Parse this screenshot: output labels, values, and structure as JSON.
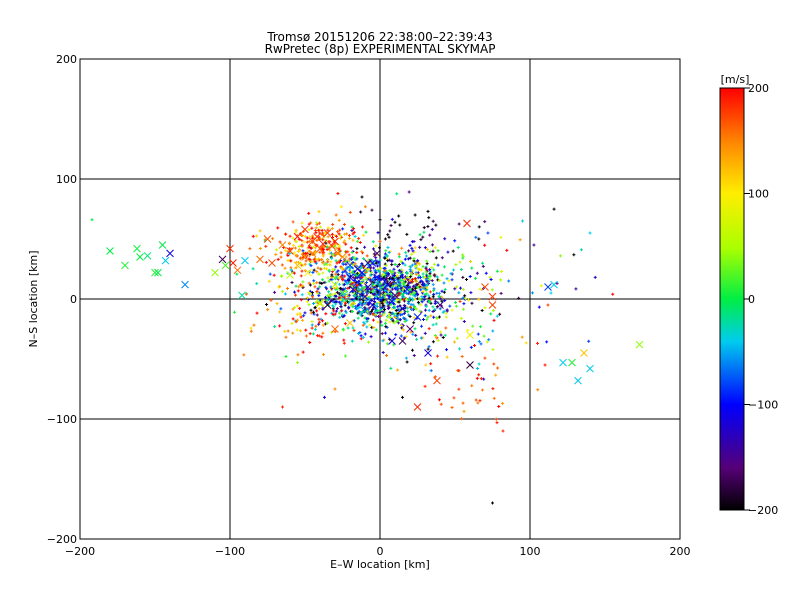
{
  "chart_data": {
    "type": "scatter",
    "title": "Tromsø 20151206 22:38:00–22:39:43",
    "subtitle": "RwPretec (8p) EXPERIMENTAL SKYMAP",
    "xlabel": "E–W location [km]",
    "ylabel": "N–S location [km]",
    "xlim": [
      -200,
      200
    ],
    "ylim": [
      -200,
      200
    ],
    "xticks": [
      -200,
      -100,
      0,
      100,
      200
    ],
    "yticks": [
      -200,
      -100,
      0,
      100,
      200
    ],
    "xtick_labels": [
      "−200",
      "−100",
      "0",
      "100",
      "200"
    ],
    "ytick_labels": [
      "−200",
      "−100",
      "0",
      "100",
      "200"
    ],
    "grid": true,
    "colorbar": {
      "label": "[m/s]",
      "range": [
        -200,
        200
      ],
      "ticks": [
        200,
        100,
        0,
        -100,
        -200
      ],
      "tick_labels": [
        "200",
        "100",
        "0",
        "−100",
        "−200"
      ],
      "colormap": "black-purple-blue-cyan-green-yellow-orange-red"
    },
    "large_markers": [
      [
        -180,
        40,
        0
      ],
      [
        -170,
        28,
        10
      ],
      [
        -162,
        42,
        5
      ],
      [
        -160,
        35,
        0
      ],
      [
        -155,
        36,
        -10
      ],
      [
        -150,
        22,
        10
      ],
      [
        -148,
        22,
        0
      ],
      [
        -145,
        45,
        0
      ],
      [
        -140,
        38,
        -110
      ],
      [
        -143,
        32,
        -40
      ],
      [
        -130,
        12,
        -60
      ],
      [
        -110,
        22,
        40
      ],
      [
        -105,
        33,
        -170
      ],
      [
        -103,
        28,
        20
      ],
      [
        -100,
        42,
        180
      ],
      [
        -98,
        30,
        190
      ],
      [
        -95,
        24,
        160
      ],
      [
        -90,
        32,
        -40
      ],
      [
        -92,
        3,
        -20
      ],
      [
        -80,
        33,
        160
      ],
      [
        -75,
        50,
        170
      ],
      [
        -72,
        30,
        170
      ],
      [
        -65,
        45,
        150
      ],
      [
        -60,
        40,
        180
      ],
      [
        -55,
        52,
        190
      ],
      [
        -50,
        58,
        180
      ],
      [
        -45,
        48,
        170
      ],
      [
        -42,
        52,
        180
      ],
      [
        -40,
        42,
        170
      ],
      [
        -38,
        46,
        190
      ],
      [
        -35,
        55,
        180
      ],
      [
        -32,
        44,
        175
      ],
      [
        -30,
        48,
        190
      ],
      [
        -28,
        38,
        160
      ],
      [
        -45,
        38,
        150
      ],
      [
        -50,
        35,
        140
      ],
      [
        -55,
        28,
        120
      ],
      [
        -48,
        22,
        100
      ],
      [
        -30,
        12,
        60
      ],
      [
        -25,
        5,
        20
      ],
      [
        -20,
        18,
        -110
      ],
      [
        -18,
        8,
        -120
      ],
      [
        -15,
        14,
        -90
      ],
      [
        -12,
        22,
        -100
      ],
      [
        -10,
        2,
        -130
      ],
      [
        -8,
        10,
        -140
      ],
      [
        -5,
        -5,
        -120
      ],
      [
        -2,
        18,
        -90
      ],
      [
        0,
        6,
        -80
      ],
      [
        5,
        12,
        -110
      ],
      [
        8,
        -2,
        -100
      ],
      [
        10,
        3,
        -150
      ],
      [
        12,
        15,
        -60
      ],
      [
        15,
        -8,
        -120
      ],
      [
        18,
        8,
        -90
      ],
      [
        -35,
        -5,
        -180
      ],
      [
        -30,
        -25,
        160
      ],
      [
        -20,
        -20,
        120
      ],
      [
        8,
        -35,
        -110
      ],
      [
        15,
        -35,
        -170
      ],
      [
        20,
        -25,
        -160
      ],
      [
        25,
        -15,
        -90
      ],
      [
        -10,
        -10,
        -60
      ],
      [
        -40,
        -3,
        50
      ],
      [
        32,
        -45,
        -110
      ],
      [
        40,
        -5,
        -150
      ],
      [
        60,
        -30,
        90
      ],
      [
        60,
        -55,
        -180
      ],
      [
        58,
        63,
        185
      ],
      [
        75,
        -5,
        175
      ],
      [
        70,
        10,
        170
      ],
      [
        38,
        -68,
        175
      ],
      [
        25,
        -90,
        185
      ],
      [
        75,
        2,
        180
      ],
      [
        112,
        10,
        -80
      ],
      [
        116,
        12,
        -40
      ],
      [
        122,
        -53,
        -40
      ],
      [
        128,
        -53,
        10
      ],
      [
        132,
        -68,
        -40
      ],
      [
        136,
        -45,
        120
      ],
      [
        140,
        -58,
        -40
      ],
      [
        173,
        -38,
        40
      ],
      [
        -40,
        -4,
        80
      ],
      [
        -60,
        20,
        60
      ],
      [
        -25,
        35,
        150
      ],
      [
        -15,
        25,
        -110
      ],
      [
        -5,
        30,
        -95
      ],
      [
        -2,
        38,
        -170
      ],
      [
        -8,
        30,
        -120
      ],
      [
        -20,
        28,
        -80
      ]
    ],
    "clusters": [
      {
        "cx": 0,
        "cy": 8,
        "sx": 22,
        "sy": 14,
        "n": 1100,
        "vmean": -70,
        "vspread": 95
      },
      {
        "cx": -42,
        "cy": 42,
        "sx": 16,
        "sy": 12,
        "n": 260,
        "vmean": 160,
        "vspread": 45
      },
      {
        "cx": -28,
        "cy": 15,
        "sx": 28,
        "sy": 22,
        "n": 200,
        "vmean": 50,
        "vspread": 110
      },
      {
        "cx": 30,
        "cy": -10,
        "sx": 30,
        "sy": 22,
        "n": 180,
        "vmean": -20,
        "vspread": 130
      },
      {
        "cx": 20,
        "cy": 55,
        "sx": 22,
        "sy": 15,
        "n": 45,
        "vmean": -170,
        "vspread": 30
      },
      {
        "cx": 60,
        "cy": -70,
        "sx": 20,
        "sy": 25,
        "n": 40,
        "vmean": 175,
        "vspread": 25
      },
      {
        "cx": -50,
        "cy": -15,
        "sx": 25,
        "sy": 15,
        "n": 50,
        "vmean": 170,
        "vspread": 35
      },
      {
        "cx": 70,
        "cy": 15,
        "sx": 35,
        "sy": 22,
        "n": 50,
        "vmean": 30,
        "vspread": 110
      }
    ],
    "sparse_points": [
      [
        -192,
        66,
        0
      ],
      [
        -12,
        85,
        -200
      ],
      [
        0,
        66,
        -200
      ],
      [
        10,
        64,
        -200
      ],
      [
        32,
        73,
        -200
      ],
      [
        95,
        65,
        -40
      ],
      [
        140,
        55,
        -40
      ],
      [
        75,
        -170,
        -200
      ],
      [
        78,
        -103,
        190
      ],
      [
        82,
        -110,
        185
      ],
      [
        -65,
        -90,
        185
      ],
      [
        -55,
        -53,
        40
      ],
      [
        -37,
        -82,
        -110
      ],
      [
        15,
        -82,
        -200
      ],
      [
        105,
        -37,
        190
      ],
      [
        110,
        -55,
        190
      ],
      [
        118,
        13,
        -160
      ],
      [
        114,
        5,
        -40
      ],
      [
        112,
        -5,
        175
      ],
      [
        -30,
        -75,
        150
      ]
    ]
  }
}
